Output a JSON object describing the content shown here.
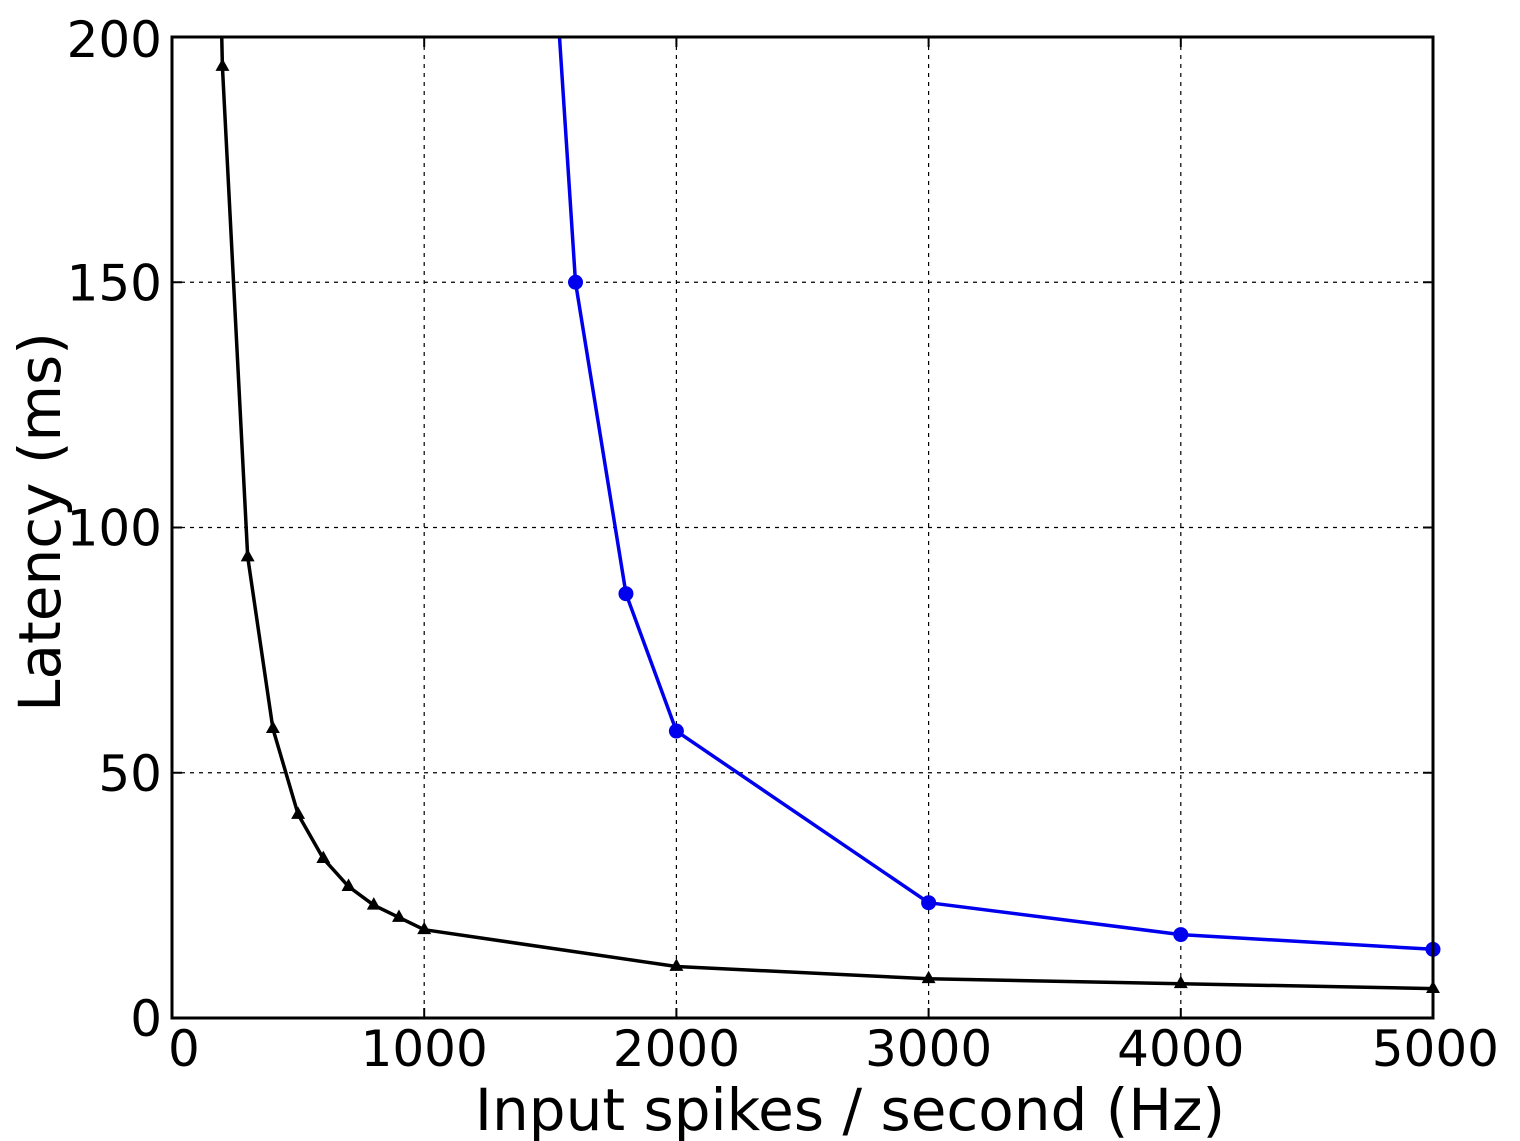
{
  "chart_data": {
    "type": "line",
    "title": "",
    "xlabel": "Input spikes / second (Hz)",
    "ylabel": "Latency (ms)",
    "xlim": [
      0,
      5000
    ],
    "ylim": [
      0,
      200
    ],
    "xticks": [
      0,
      1000,
      2000,
      3000,
      4000,
      5000
    ],
    "yticks": [
      0,
      50,
      100,
      150,
      200
    ],
    "grid": true,
    "legend": "none",
    "series": [
      {
        "color": "#000000",
        "marker": "triangle",
        "points": [
          [
            180,
            240
          ],
          [
            200,
            194
          ],
          [
            300,
            94
          ],
          [
            400,
            59
          ],
          [
            500,
            41.5
          ],
          [
            600,
            32.5
          ],
          [
            700,
            26.8
          ],
          [
            800,
            23
          ],
          [
            900,
            20.5
          ],
          [
            1000,
            18
          ],
          [
            2000,
            10.5
          ],
          [
            3000,
            8
          ],
          [
            4000,
            7
          ],
          [
            5000,
            6
          ]
        ]
      },
      {
        "color": "#0000ee",
        "marker": "circle",
        "points": [
          [
            1530,
            205
          ],
          [
            1600,
            150
          ],
          [
            1800,
            86.5
          ],
          [
            2000,
            58.5
          ],
          [
            3000,
            23.5
          ],
          [
            4000,
            17
          ],
          [
            5000,
            14
          ]
        ]
      }
    ]
  }
}
